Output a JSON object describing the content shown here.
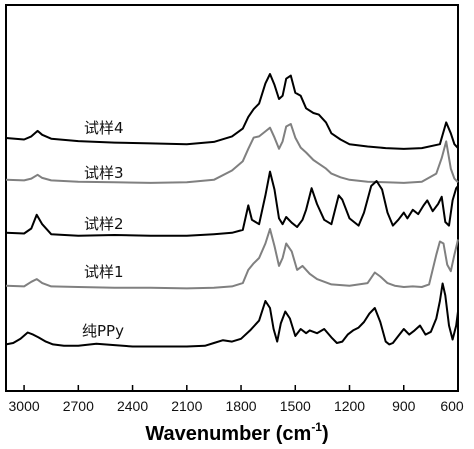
{
  "chart_data": {
    "type": "line",
    "xlabel": "Wavenumber (cm",
    "xlabel_sup": "-1",
    "xlabel_close": ")",
    "ylabel": "",
    "xlim": [
      3100,
      600
    ],
    "x_reversed": true,
    "x_ticks": [
      3000,
      2700,
      2400,
      2100,
      1800,
      1500,
      1200,
      900,
      600
    ],
    "y_ticks": [],
    "grid": false,
    "legend": "none (curve labels placed beside each spectrum)",
    "series": [
      {
        "name": "试样4",
        "color": "#000000",
        "points": [
          [
            3100,
            0.18
          ],
          [
            3000,
            0.16
          ],
          [
            2960,
            0.2
          ],
          [
            2925,
            0.27
          ],
          [
            2900,
            0.22
          ],
          [
            2850,
            0.17
          ],
          [
            2700,
            0.14
          ],
          [
            2500,
            0.12
          ],
          [
            2300,
            0.11
          ],
          [
            2100,
            0.1
          ],
          [
            1950,
            0.13
          ],
          [
            1850,
            0.2
          ],
          [
            1790,
            0.3
          ],
          [
            1760,
            0.45
          ],
          [
            1730,
            0.55
          ],
          [
            1700,
            0.62
          ],
          [
            1665,
            0.88
          ],
          [
            1640,
            1.0
          ],
          [
            1615,
            0.86
          ],
          [
            1590,
            0.68
          ],
          [
            1570,
            0.72
          ],
          [
            1550,
            0.94
          ],
          [
            1525,
            0.98
          ],
          [
            1500,
            0.76
          ],
          [
            1470,
            0.72
          ],
          [
            1440,
            0.56
          ],
          [
            1400,
            0.5
          ],
          [
            1370,
            0.48
          ],
          [
            1330,
            0.38
          ],
          [
            1300,
            0.24
          ],
          [
            1250,
            0.16
          ],
          [
            1200,
            0.1
          ],
          [
            1100,
            0.07
          ],
          [
            1000,
            0.05
          ],
          [
            900,
            0.04
          ],
          [
            800,
            0.05
          ],
          [
            700,
            0.1
          ],
          [
            665,
            0.38
          ],
          [
            640,
            0.24
          ],
          [
            620,
            0.1
          ],
          [
            600,
            0.05
          ]
        ]
      },
      {
        "name": "试样3",
        "color": "#808080",
        "points": [
          [
            3100,
            0.1
          ],
          [
            3000,
            0.09
          ],
          [
            2960,
            0.12
          ],
          [
            2925,
            0.18
          ],
          [
            2900,
            0.13
          ],
          [
            2850,
            0.09
          ],
          [
            2700,
            0.07
          ],
          [
            2500,
            0.06
          ],
          [
            2300,
            0.05
          ],
          [
            2100,
            0.06
          ],
          [
            1950,
            0.1
          ],
          [
            1850,
            0.25
          ],
          [
            1790,
            0.4
          ],
          [
            1760,
            0.6
          ],
          [
            1730,
            0.78
          ],
          [
            1700,
            0.8
          ],
          [
            1665,
            0.88
          ],
          [
            1640,
            0.94
          ],
          [
            1615,
            0.78
          ],
          [
            1590,
            0.6
          ],
          [
            1570,
            0.72
          ],
          [
            1550,
            0.96
          ],
          [
            1525,
            1.0
          ],
          [
            1500,
            0.78
          ],
          [
            1470,
            0.62
          ],
          [
            1440,
            0.54
          ],
          [
            1400,
            0.42
          ],
          [
            1370,
            0.36
          ],
          [
            1330,
            0.28
          ],
          [
            1300,
            0.2
          ],
          [
            1250,
            0.14
          ],
          [
            1200,
            0.1
          ],
          [
            1100,
            0.07
          ],
          [
            1000,
            0.06
          ],
          [
            900,
            0.05
          ],
          [
            800,
            0.07
          ],
          [
            720,
            0.2
          ],
          [
            690,
            0.45
          ],
          [
            665,
            0.72
          ],
          [
            640,
            0.28
          ],
          [
            620,
            0.12
          ],
          [
            600,
            0.06
          ]
        ]
      },
      {
        "name": "试样2",
        "color": "#000000",
        "points": [
          [
            3100,
            0.1
          ],
          [
            3000,
            0.09
          ],
          [
            2960,
            0.16
          ],
          [
            2930,
            0.35
          ],
          [
            2900,
            0.22
          ],
          [
            2850,
            0.08
          ],
          [
            2700,
            0.06
          ],
          [
            2500,
            0.07
          ],
          [
            2300,
            0.06
          ],
          [
            2100,
            0.06
          ],
          [
            1950,
            0.08
          ],
          [
            1850,
            0.1
          ],
          [
            1790,
            0.14
          ],
          [
            1760,
            0.48
          ],
          [
            1740,
            0.28
          ],
          [
            1700,
            0.22
          ],
          [
            1665,
            0.62
          ],
          [
            1640,
            0.95
          ],
          [
            1615,
            0.7
          ],
          [
            1590,
            0.3
          ],
          [
            1570,
            0.22
          ],
          [
            1550,
            0.32
          ],
          [
            1520,
            0.24
          ],
          [
            1490,
            0.18
          ],
          [
            1460,
            0.28
          ],
          [
            1440,
            0.42
          ],
          [
            1410,
            0.72
          ],
          [
            1380,
            0.5
          ],
          [
            1340,
            0.28
          ],
          [
            1300,
            0.22
          ],
          [
            1260,
            0.62
          ],
          [
            1240,
            0.56
          ],
          [
            1200,
            0.3
          ],
          [
            1150,
            0.2
          ],
          [
            1120,
            0.38
          ],
          [
            1080,
            0.75
          ],
          [
            1050,
            0.82
          ],
          [
            1020,
            0.7
          ],
          [
            990,
            0.38
          ],
          [
            960,
            0.2
          ],
          [
            930,
            0.28
          ],
          [
            900,
            0.38
          ],
          [
            880,
            0.3
          ],
          [
            850,
            0.42
          ],
          [
            820,
            0.36
          ],
          [
            790,
            0.48
          ],
          [
            770,
            0.55
          ],
          [
            740,
            0.4
          ],
          [
            710,
            0.5
          ],
          [
            690,
            0.6
          ],
          [
            670,
            0.25
          ],
          [
            650,
            0.2
          ],
          [
            630,
            0.55
          ],
          [
            610,
            0.72
          ],
          [
            600,
            0.75
          ]
        ]
      },
      {
        "name": "试样1",
        "color": "#808080",
        "points": [
          [
            3100,
            0.08
          ],
          [
            3000,
            0.07
          ],
          [
            2960,
            0.14
          ],
          [
            2930,
            0.18
          ],
          [
            2900,
            0.12
          ],
          [
            2850,
            0.07
          ],
          [
            2700,
            0.06
          ],
          [
            2500,
            0.05
          ],
          [
            2300,
            0.05
          ],
          [
            2100,
            0.04
          ],
          [
            1950,
            0.05
          ],
          [
            1850,
            0.07
          ],
          [
            1790,
            0.12
          ],
          [
            1760,
            0.32
          ],
          [
            1730,
            0.42
          ],
          [
            1700,
            0.5
          ],
          [
            1665,
            0.72
          ],
          [
            1640,
            0.94
          ],
          [
            1615,
            0.68
          ],
          [
            1590,
            0.38
          ],
          [
            1570,
            0.5
          ],
          [
            1550,
            0.72
          ],
          [
            1520,
            0.6
          ],
          [
            1490,
            0.32
          ],
          [
            1460,
            0.38
          ],
          [
            1420,
            0.26
          ],
          [
            1380,
            0.18
          ],
          [
            1300,
            0.1
          ],
          [
            1200,
            0.08
          ],
          [
            1100,
            0.12
          ],
          [
            1060,
            0.28
          ],
          [
            1030,
            0.22
          ],
          [
            990,
            0.12
          ],
          [
            950,
            0.08
          ],
          [
            900,
            0.06
          ],
          [
            850,
            0.07
          ],
          [
            800,
            0.06
          ],
          [
            760,
            0.1
          ],
          [
            720,
            0.55
          ],
          [
            700,
            0.75
          ],
          [
            680,
            0.72
          ],
          [
            660,
            0.4
          ],
          [
            640,
            0.3
          ],
          [
            620,
            0.55
          ],
          [
            605,
            0.72
          ],
          [
            600,
            0.78
          ]
        ]
      },
      {
        "name": "纯PPy",
        "color": "#000000",
        "points": [
          [
            3100,
            0.08
          ],
          [
            3060,
            0.1
          ],
          [
            3020,
            0.16
          ],
          [
            2980,
            0.25
          ],
          [
            2950,
            0.22
          ],
          [
            2920,
            0.18
          ],
          [
            2880,
            0.12
          ],
          [
            2840,
            0.08
          ],
          [
            2780,
            0.06
          ],
          [
            2700,
            0.06
          ],
          [
            2600,
            0.09
          ],
          [
            2500,
            0.07
          ],
          [
            2400,
            0.05
          ],
          [
            2300,
            0.05
          ],
          [
            2200,
            0.05
          ],
          [
            2100,
            0.05
          ],
          [
            2000,
            0.06
          ],
          [
            1950,
            0.1
          ],
          [
            1900,
            0.14
          ],
          [
            1850,
            0.12
          ],
          [
            1800,
            0.16
          ],
          [
            1750,
            0.28
          ],
          [
            1700,
            0.42
          ],
          [
            1665,
            0.7
          ],
          [
            1640,
            0.6
          ],
          [
            1620,
            0.3
          ],
          [
            1600,
            0.12
          ],
          [
            1580,
            0.38
          ],
          [
            1555,
            0.55
          ],
          [
            1530,
            0.45
          ],
          [
            1500,
            0.2
          ],
          [
            1470,
            0.3
          ],
          [
            1440,
            0.24
          ],
          [
            1420,
            0.28
          ],
          [
            1380,
            0.24
          ],
          [
            1340,
            0.3
          ],
          [
            1300,
            0.18
          ],
          [
            1270,
            0.1
          ],
          [
            1240,
            0.12
          ],
          [
            1210,
            0.22
          ],
          [
            1180,
            0.28
          ],
          [
            1150,
            0.32
          ],
          [
            1120,
            0.4
          ],
          [
            1090,
            0.52
          ],
          [
            1060,
            0.6
          ],
          [
            1030,
            0.4
          ],
          [
            1000,
            0.12
          ],
          [
            980,
            0.08
          ],
          [
            960,
            0.1
          ],
          [
            930,
            0.2
          ],
          [
            900,
            0.3
          ],
          [
            870,
            0.22
          ],
          [
            840,
            0.28
          ],
          [
            810,
            0.35
          ],
          [
            780,
            0.22
          ],
          [
            750,
            0.26
          ],
          [
            720,
            0.45
          ],
          [
            700,
            0.7
          ],
          [
            685,
            0.95
          ],
          [
            670,
            0.78
          ],
          [
            650,
            0.35
          ],
          [
            630,
            0.15
          ],
          [
            610,
            0.35
          ],
          [
            600,
            0.55
          ]
        ]
      }
    ]
  }
}
